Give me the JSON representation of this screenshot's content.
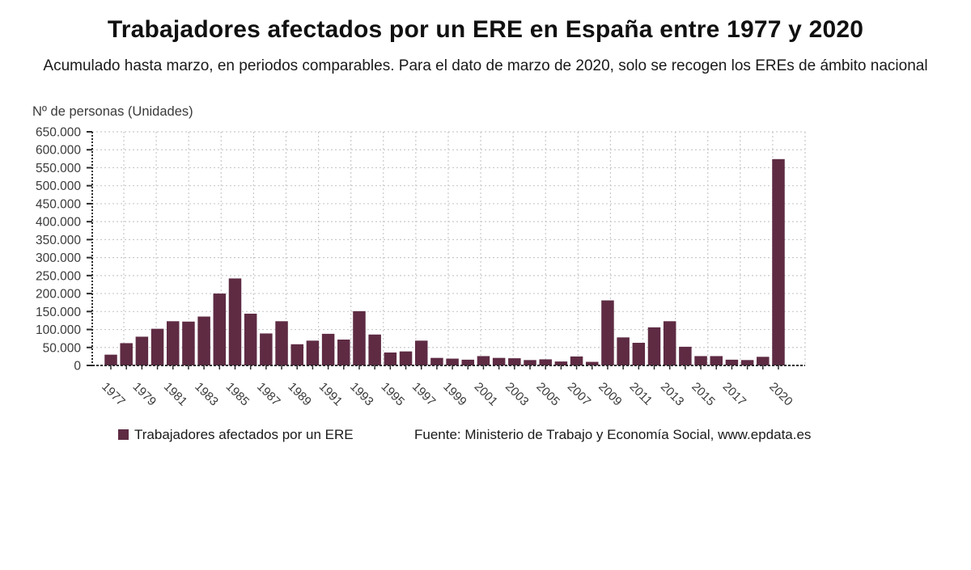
{
  "header": {
    "title": "Trabajadores afectados por un ERE en España entre 1977 y 2020",
    "subtitle": "Acumulado hasta marzo, en periodos comparables. Para el dato de marzo de 2020, solo se recogen los EREs de ámbito nacional"
  },
  "chart_data": {
    "type": "bar",
    "title": "Trabajadores afectados por un ERE en España entre 1977 y 2020",
    "subtitle": "Acumulado hasta marzo, en periodos comparables. Para el dato de marzo de 2020, solo se recogen los EREs de ámbito nacional",
    "y_axis_title": "Nº de personas (Unidades)",
    "x": [
      1977,
      1978,
      1979,
      1980,
      1981,
      1982,
      1983,
      1984,
      1985,
      1986,
      1987,
      1988,
      1989,
      1990,
      1991,
      1992,
      1993,
      1994,
      1995,
      1996,
      1997,
      1998,
      1999,
      2000,
      2001,
      2002,
      2003,
      2004,
      2005,
      2006,
      2007,
      2008,
      2009,
      2010,
      2011,
      2012,
      2013,
      2014,
      2015,
      2016,
      2017,
      2018,
      2019,
      2020
    ],
    "values": [
      30000,
      62000,
      80000,
      102000,
      123000,
      122000,
      136000,
      200000,
      242000,
      144000,
      89000,
      123000,
      59000,
      69000,
      88000,
      72000,
      151000,
      86000,
      36000,
      39000,
      69000,
      21000,
      19000,
      16000,
      26000,
      21000,
      20000,
      15000,
      17000,
      11000,
      25000,
      10000,
      181000,
      78000,
      63000,
      106000,
      123000,
      52000,
      26000,
      26000,
      16000,
      15000,
      24000,
      574000
    ],
    "x_tick_years": [
      1977,
      1979,
      1981,
      1983,
      1985,
      1987,
      1989,
      1991,
      1993,
      1995,
      1997,
      1999,
      2001,
      2003,
      2005,
      2007,
      2009,
      2011,
      2013,
      2015,
      2017,
      2020
    ],
    "ylim": [
      0,
      650000
    ],
    "y_tick_step": 50000,
    "grid": "dotted",
    "legend_position": "bottom-left",
    "series_name": "Trabajadores afectados por un ERE"
  },
  "legend": {
    "label": "Trabajadores afectados por un ERE",
    "source": "Fuente: Ministerio de Trabajo y Economía Social, www.epdata.es"
  },
  "colors": {
    "bar": "#5e2b43",
    "axis": "#2b2b2b",
    "grid": "#c9c9c9",
    "tick_text": "#3a3a3a"
  }
}
